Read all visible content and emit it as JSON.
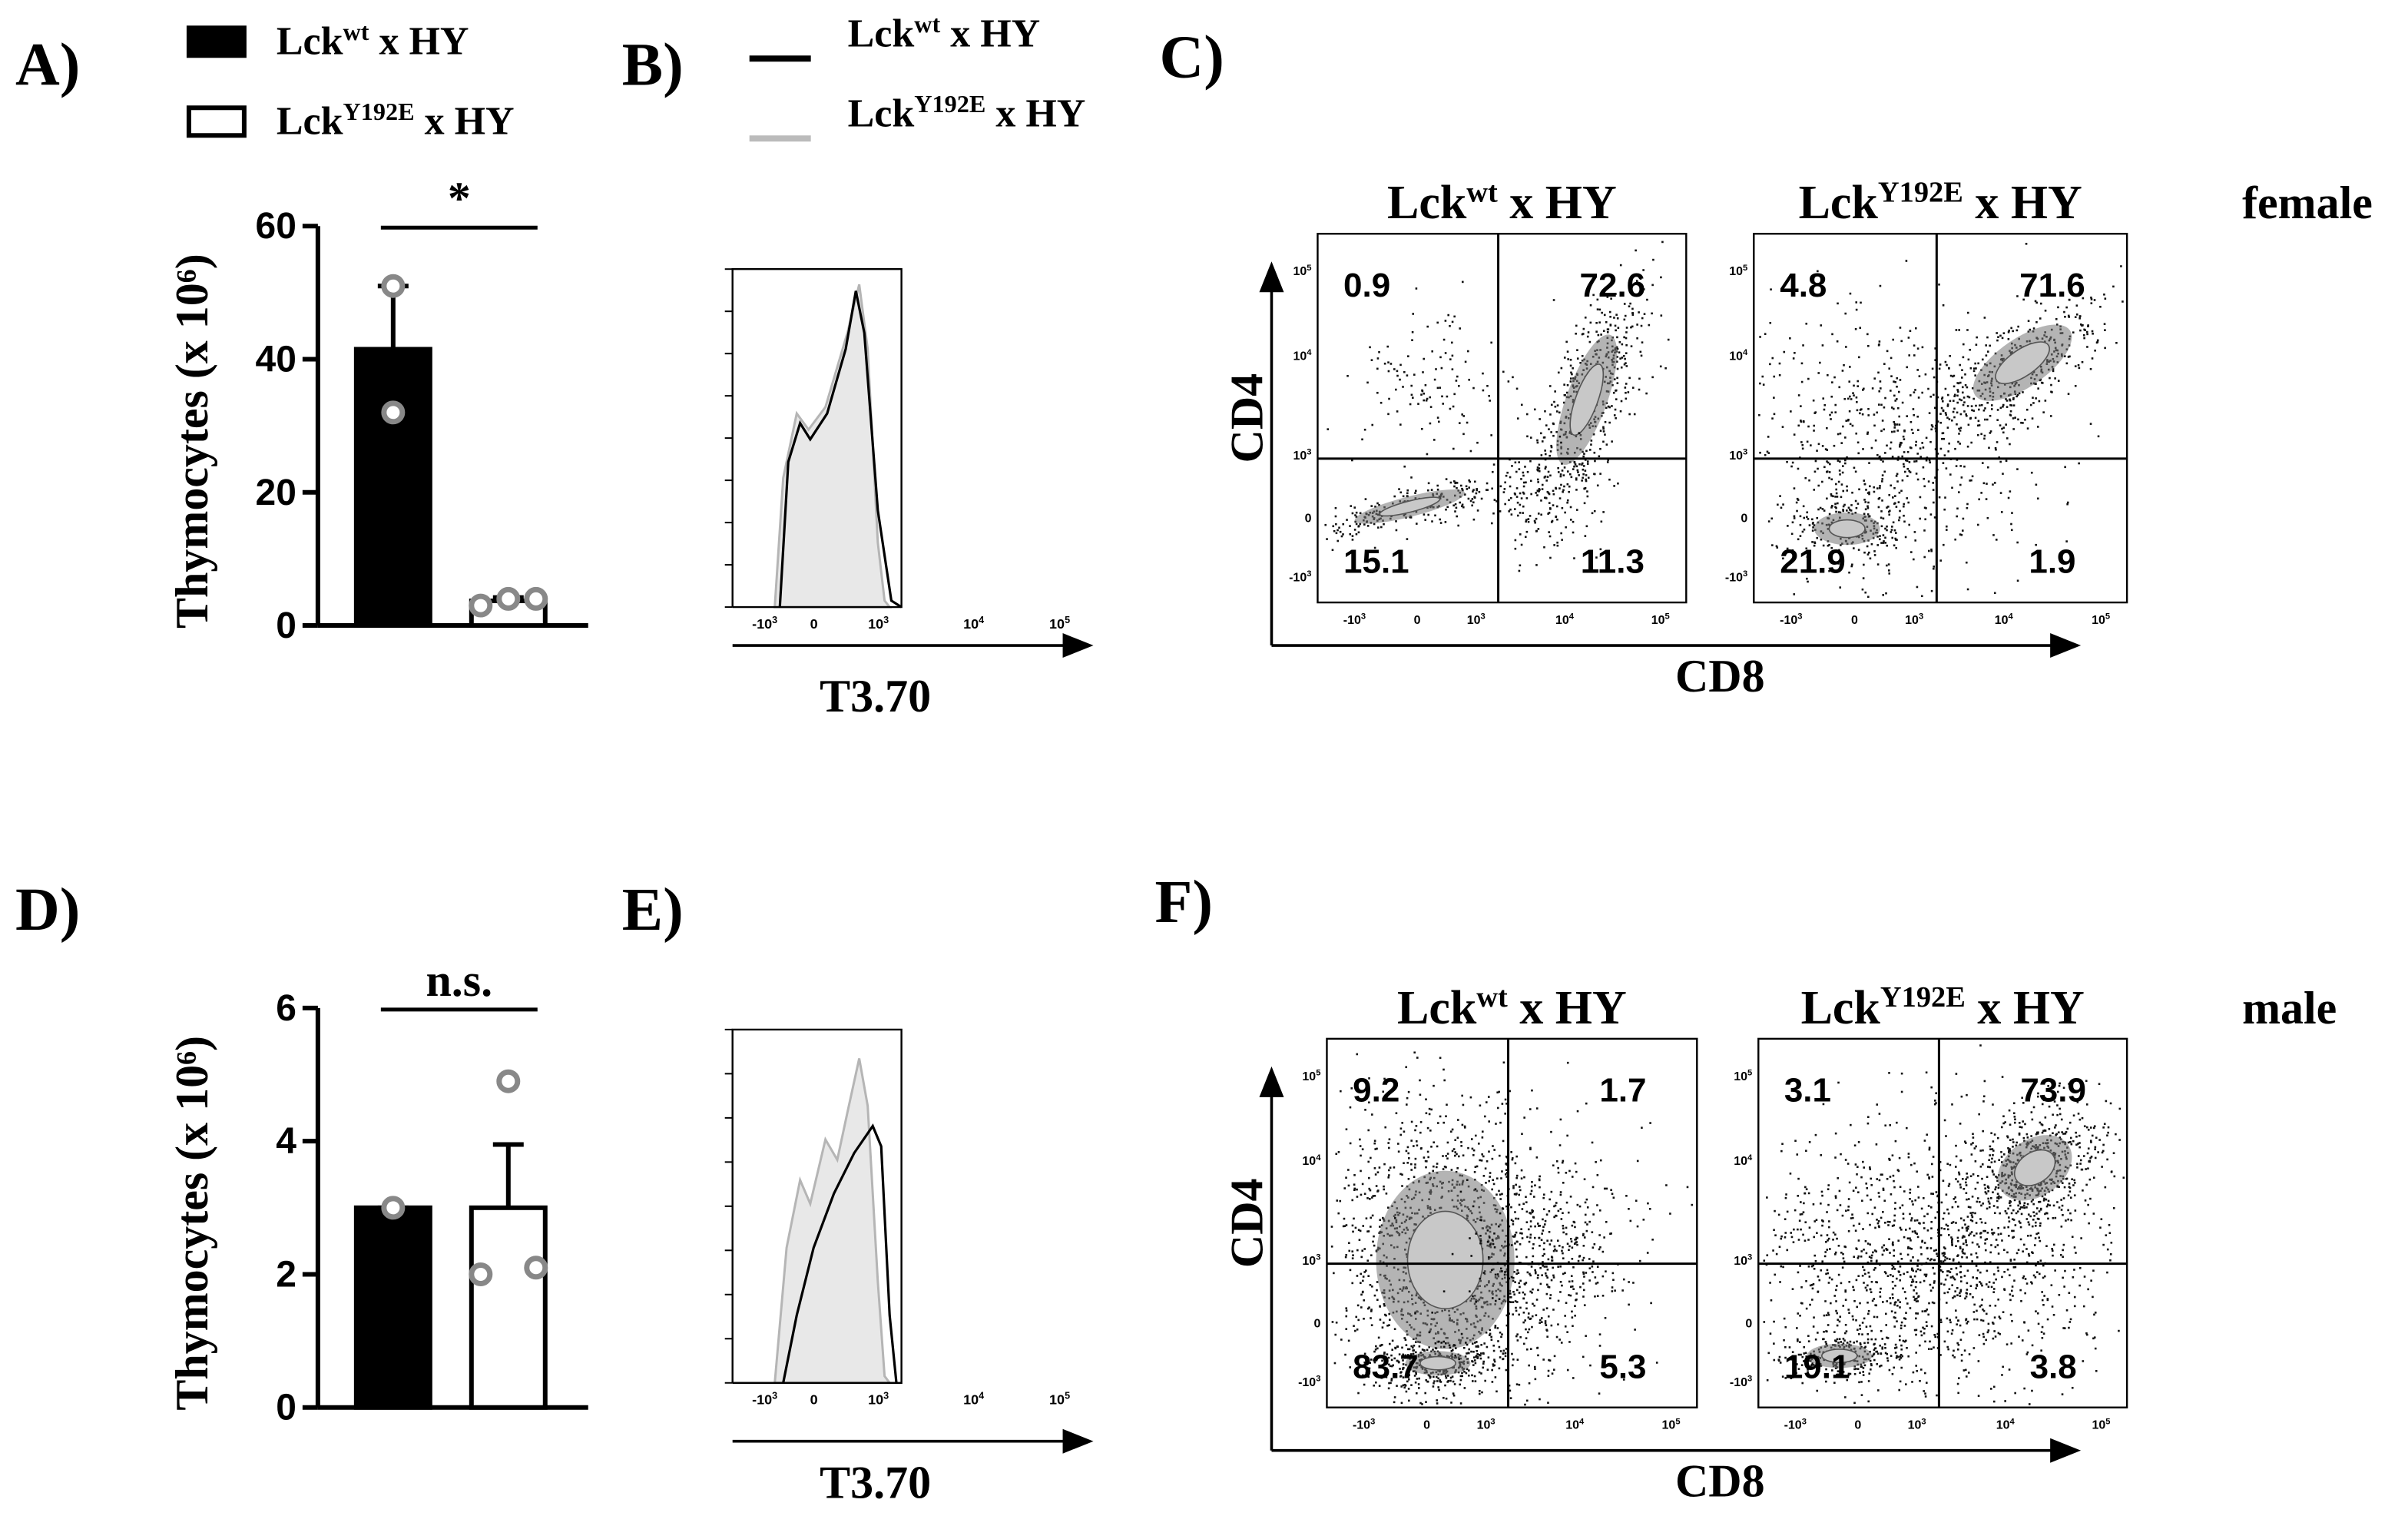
{
  "chart_data": [
    {
      "type": "bar",
      "panel": "A)",
      "ylabel": "Thymocytes (x 10⁶)",
      "annotation": "*",
      "ylim": [
        0,
        60
      ],
      "yticks": [
        0,
        20,
        40,
        60
      ],
      "series": [
        {
          "name": {
            "base": "Lck",
            "sup": "wt",
            "suffix": " x HY"
          },
          "color": "#000000",
          "values": [
            41.5
          ],
          "errors": [
            9.5
          ],
          "points": [
            51,
            32
          ]
        },
        {
          "name": {
            "base": "Lck",
            "sup": "Y192E",
            "suffix": " x HY"
          },
          "color": "#ffffff",
          "values": [
            3.7
          ],
          "errors": [
            0.5
          ],
          "points": [
            3,
            4,
            4
          ]
        }
      ]
    },
    {
      "type": "bar",
      "panel": "D)",
      "ylabel": "Thymocytes (x 10⁶)",
      "annotation": "n.s.",
      "ylim": [
        0,
        6
      ],
      "yticks": [
        0,
        2,
        4,
        6
      ],
      "series": [
        {
          "color": "#000000",
          "values": [
            3
          ],
          "errors": [
            0
          ],
          "points": [
            3
          ]
        },
        {
          "color": "#ffffff",
          "values": [
            3
          ],
          "errors": [
            0.95
          ],
          "points": [
            2,
            4.9,
            2.1
          ]
        }
      ]
    }
  ],
  "cytometry_ticks": {
    "x": [
      {
        "base": "-10",
        "exp": "3"
      },
      {
        "base": "0"
      },
      {
        "base": "10",
        "exp": "3"
      },
      {
        "base": "10",
        "exp": "4"
      },
      {
        "base": "10",
        "exp": "5"
      }
    ],
    "y": [
      {
        "base": "10",
        "exp": "5"
      },
      {
        "base": "10",
        "exp": "4"
      },
      {
        "base": "10",
        "exp": "3"
      },
      {
        "base": "0"
      },
      {
        "base": "-10",
        "exp": "3"
      }
    ]
  },
  "histograms": [
    {
      "panel": "B)",
      "xlabel": "T3.70",
      "legend": [
        {
          "base": "Lck",
          "sup": "wt",
          "suffix": " x HY",
          "color": "#000000"
        },
        {
          "base": "Lck",
          "sup": "Y192E",
          "suffix": " x HY",
          "color": "#bbbbbb"
        }
      ]
    },
    {
      "panel": "E)",
      "xlabel": "T3.70"
    }
  ],
  "dot_plots": {
    "xlabel": "CD8",
    "ylabel": "CD4",
    "rows": [
      {
        "panel": "C)",
        "label": "female",
        "plots": [
          {
            "title": {
              "base": "Lck",
              "sup": "wt",
              "suffix": " x HY"
            },
            "quadrants": [
              0.9,
              72.6,
              15.1,
              11.3
            ]
          },
          {
            "title": {
              "base": "Lck",
              "sup": "Y192E",
              "suffix": " x HY"
            },
            "quadrants": [
              4.8,
              71.6,
              21.9,
              1.9
            ]
          }
        ]
      },
      {
        "panel": "F)",
        "label": "male",
        "plots": [
          {
            "title": {
              "base": "Lck",
              "sup": "wt",
              "suffix": " x HY"
            },
            "quadrants": [
              9.2,
              1.7,
              83.7,
              5.3
            ]
          },
          {
            "title": {
              "base": "Lck",
              "sup": "Y192E",
              "suffix": " x HY"
            },
            "quadrants": [
              3.1,
              73.9,
              19.1,
              3.8
            ]
          }
        ]
      }
    ]
  }
}
